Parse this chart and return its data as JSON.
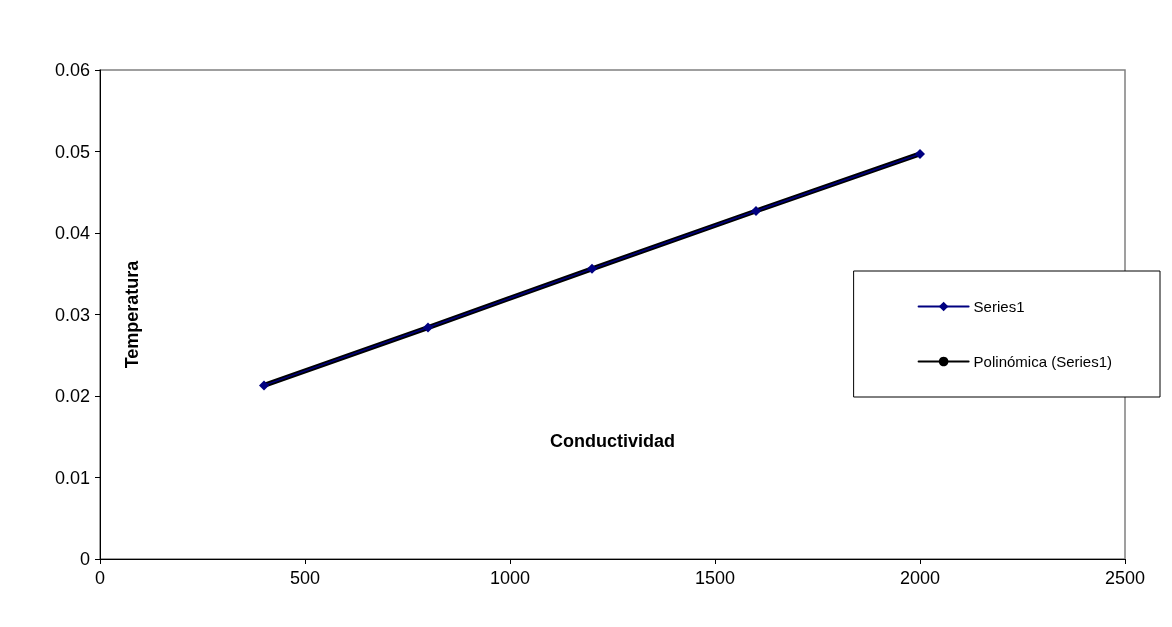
{
  "chart_data": {
    "type": "line",
    "xlabel": "Conductividad",
    "ylabel": "Temperatura",
    "series": [
      {
        "name": "Series1",
        "color": "#000080",
        "x": [
          400,
          800,
          1200,
          1600,
          2000
        ],
        "values": [
          0.0213,
          0.0284,
          0.0356,
          0.0427,
          0.0497
        ],
        "marker": "diamond"
      },
      {
        "name": "Polinómica (Series1)",
        "color": "#000000",
        "x": [
          400,
          800,
          1200,
          1600,
          2000
        ],
        "values": [
          0.0213,
          0.0284,
          0.0356,
          0.0427,
          0.0497
        ],
        "marker": "none"
      }
    ],
    "xlim": [
      0,
      2500
    ],
    "xticks": [
      0,
      500,
      1000,
      1500,
      2000,
      2500
    ],
    "ylim": [
      0,
      0.06
    ],
    "yticks": [
      0,
      0.01,
      0.02,
      0.03,
      0.04,
      0.05,
      0.06
    ],
    "grid": false,
    "legend": "right"
  }
}
